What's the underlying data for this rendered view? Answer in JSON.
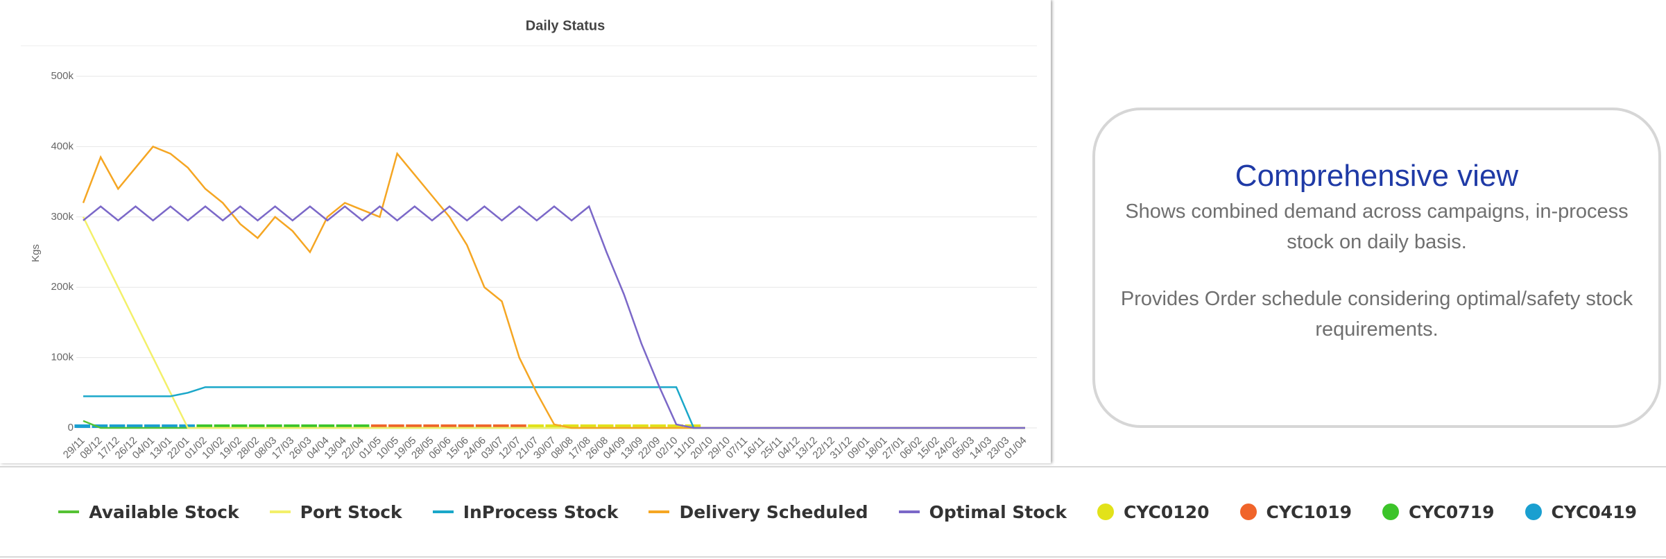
{
  "chart_data": {
    "type": "line",
    "title": "Daily Status",
    "y_label": "Kgs",
    "categories": [
      "29/11",
      "08/12",
      "17/12",
      "26/12",
      "04/01",
      "13/01",
      "22/01",
      "01/02",
      "10/02",
      "19/02",
      "28/02",
      "08/03",
      "17/03",
      "26/03",
      "04/04",
      "13/04",
      "22/04",
      "01/05",
      "10/05",
      "19/05",
      "28/05",
      "06/06",
      "15/06",
      "24/06",
      "03/07",
      "12/07",
      "21/07",
      "30/07",
      "08/08",
      "17/08",
      "26/08",
      "04/09",
      "13/09",
      "22/09",
      "02/10",
      "11/10",
      "20/10",
      "29/10",
      "07/11",
      "16/11",
      "25/11",
      "04/12",
      "13/12",
      "22/12",
      "31/12",
      "09/01",
      "18/01",
      "27/01",
      "06/02",
      "15/02",
      "24/02",
      "05/03",
      "14/03",
      "23/03",
      "01/04"
    ],
    "ylim": [
      0,
      500000
    ],
    "yticks": [
      0,
      {
        "value": 100000,
        "label": "100k"
      },
      {
        "value": 200000,
        "label": "200k"
      },
      {
        "value": 300000,
        "label": "300k"
      },
      {
        "value": 400000,
        "label": "400k"
      },
      {
        "value": 500000,
        "label": "500k"
      }
    ],
    "grid": true,
    "series": [
      {
        "name": "Available Stock",
        "type": "line",
        "color": "#55c234",
        "values": [
          10000,
          0,
          0,
          0,
          0,
          0,
          0,
          0,
          0,
          0,
          0,
          0,
          0,
          0,
          0,
          0,
          0,
          0,
          0,
          0,
          0,
          0,
          0,
          0,
          0,
          0,
          0,
          0,
          0,
          0,
          0,
          0,
          0,
          0,
          0,
          0,
          0,
          0,
          0,
          0,
          0,
          0,
          0,
          0,
          0,
          0,
          0,
          0,
          0,
          0,
          0,
          0,
          0,
          0,
          0
        ]
      },
      {
        "name": "Port Stock",
        "type": "line",
        "color": "#f3f06a",
        "values": [
          300000,
          250000,
          200000,
          150000,
          100000,
          50000,
          0,
          0,
          0,
          0,
          0,
          0,
          0,
          0,
          0,
          0,
          0,
          0,
          0,
          0,
          0,
          0,
          0,
          0,
          0,
          0,
          0,
          0,
          0,
          0,
          0,
          0,
          0,
          0,
          0,
          0,
          0,
          0,
          0,
          0,
          0,
          0,
          0,
          0,
          0,
          0,
          0,
          0,
          0,
          0,
          0,
          0,
          0,
          0,
          0
        ]
      },
      {
        "name": "InProcess Stock",
        "type": "line",
        "color": "#1aa7c9",
        "values": [
          45000,
          45000,
          45000,
          45000,
          45000,
          45000,
          50000,
          58000,
          58000,
          58000,
          58000,
          58000,
          58000,
          58000,
          58000,
          58000,
          58000,
          58000,
          58000,
          58000,
          58000,
          58000,
          58000,
          58000,
          58000,
          58000,
          58000,
          58000,
          58000,
          58000,
          58000,
          58000,
          58000,
          58000,
          58000,
          0,
          0,
          0,
          0,
          0,
          0,
          0,
          0,
          0,
          0,
          0,
          0,
          0,
          0,
          0,
          0,
          0,
          0,
          0,
          0
        ]
      },
      {
        "name": "Delivery Scheduled",
        "type": "line",
        "color": "#f5a623",
        "values": [
          320000,
          385000,
          340000,
          370000,
          400000,
          390000,
          370000,
          340000,
          320000,
          290000,
          270000,
          300000,
          280000,
          250000,
          300000,
          320000,
          310000,
          300000,
          390000,
          360000,
          330000,
          300000,
          260000,
          200000,
          180000,
          100000,
          50000,
          5000,
          0,
          0,
          0,
          0,
          0,
          0,
          0,
          0,
          0,
          0,
          0,
          0,
          0,
          0,
          0,
          0,
          0,
          0,
          0,
          0,
          0,
          0,
          0,
          0,
          0,
          0,
          0
        ]
      },
      {
        "name": "Optimal Stock",
        "type": "line",
        "color": "#7b68c8",
        "values": [
          295000,
          315000,
          295000,
          315000,
          295000,
          315000,
          295000,
          315000,
          295000,
          315000,
          295000,
          315000,
          295000,
          315000,
          295000,
          315000,
          295000,
          315000,
          295000,
          315000,
          295000,
          315000,
          295000,
          315000,
          295000,
          315000,
          295000,
          315000,
          295000,
          315000,
          250000,
          190000,
          120000,
          60000,
          5000,
          0,
          0,
          0,
          0,
          0,
          0,
          0,
          0,
          0,
          0,
          0,
          0,
          0,
          0,
          0,
          0,
          0,
          0,
          0,
          0
        ]
      },
      {
        "name": "CYC0120",
        "type": "bar",
        "color": "#e2e21a",
        "values": [
          null,
          null,
          null,
          null,
          null,
          null,
          null,
          null,
          null,
          null,
          null,
          null,
          null,
          null,
          null,
          null,
          null,
          null,
          null,
          null,
          null,
          null,
          null,
          null,
          null,
          null,
          5000,
          5000,
          5000,
          5000,
          5000,
          5000,
          5000,
          5000,
          5000,
          5000,
          null,
          null,
          null,
          null,
          null,
          null,
          null,
          null,
          null,
          null,
          null,
          null,
          null,
          null,
          null,
          null,
          null,
          null,
          null
        ]
      },
      {
        "name": "CYC1019",
        "type": "bar",
        "color": "#f0642a",
        "values": [
          null,
          null,
          null,
          null,
          null,
          null,
          null,
          null,
          null,
          null,
          null,
          null,
          null,
          null,
          null,
          null,
          null,
          5000,
          5000,
          5000,
          5000,
          5000,
          5000,
          5000,
          5000,
          5000,
          null,
          null,
          null,
          null,
          null,
          null,
          null,
          null,
          null,
          null,
          null,
          null,
          null,
          null,
          null,
          null,
          null,
          null,
          null,
          null,
          null,
          null,
          null,
          null,
          null,
          null,
          null,
          null,
          null
        ]
      },
      {
        "name": "CYC0719",
        "type": "bar",
        "color": "#3cc42a",
        "values": [
          null,
          null,
          null,
          null,
          null,
          null,
          null,
          5000,
          5000,
          5000,
          5000,
          5000,
          5000,
          5000,
          5000,
          5000,
          5000,
          null,
          null,
          null,
          null,
          null,
          null,
          null,
          null,
          null,
          null,
          null,
          null,
          null,
          null,
          null,
          null,
          null,
          null,
          null,
          null,
          null,
          null,
          null,
          null,
          null,
          null,
          null,
          null,
          null,
          null,
          null,
          null,
          null,
          null,
          null,
          null,
          null,
          null
        ]
      },
      {
        "name": "CYC0419",
        "type": "bar",
        "color": "#1a9fd0",
        "values": [
          5000,
          5000,
          5000,
          5000,
          5000,
          5000,
          5000,
          null,
          null,
          null,
          null,
          null,
          null,
          null,
          null,
          null,
          null,
          null,
          null,
          null,
          null,
          null,
          null,
          null,
          null,
          null,
          null,
          null,
          null,
          null,
          null,
          null,
          null,
          null,
          null,
          null,
          null,
          null,
          null,
          null,
          null,
          null,
          null,
          null,
          null,
          null,
          null,
          null,
          null,
          null,
          null,
          null,
          null,
          null,
          null
        ]
      }
    ]
  },
  "callout": {
    "title": "Comprehensive view",
    "paragraphs": [
      "Shows combined demand across campaigns, in-process stock on daily basis.",
      "Provides Order schedule considering optimal/safety stock requirements."
    ]
  }
}
